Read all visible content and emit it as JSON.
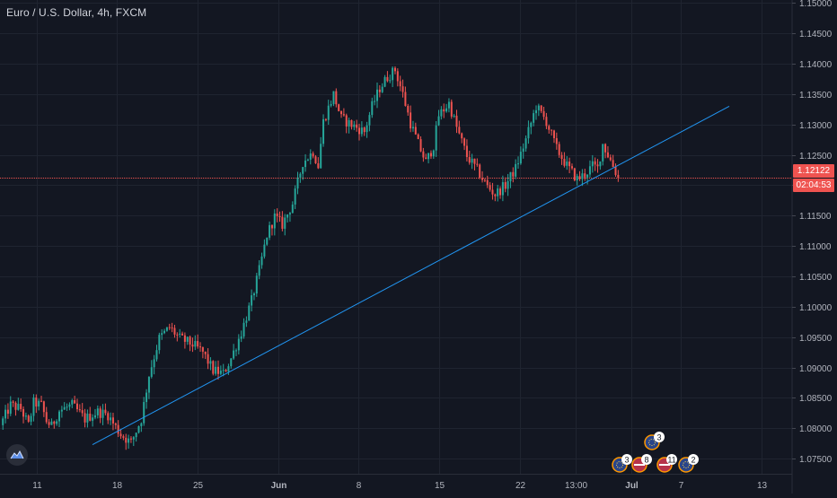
{
  "header": {
    "title": "Euro / U.S. Dollar, 4h, FXCM"
  },
  "price_line": {
    "price_label": "1.12122",
    "countdown_label": "02:04:53",
    "color": "#ef5350"
  },
  "logo": {
    "icon": "tradingview-cloud-icon"
  },
  "colors": {
    "background": "#131722",
    "up": "#26a69a",
    "down": "#ef5350",
    "trendline": "#2196f3",
    "grid": "#1f2430",
    "axis_text": "#b2b5be"
  },
  "events": [
    {
      "icon": "flag-eu-icon",
      "count": "3"
    },
    {
      "icon": "flag-us-icon",
      "count": "8"
    },
    {
      "icon": "flag-us-icon",
      "count": "11"
    },
    {
      "icon": "flag-eu-icon",
      "count": "2"
    },
    {
      "icon": "flag-eu-icon",
      "count": "3"
    }
  ],
  "chart_data": {
    "type": "candlestick",
    "symbol": "Euro / U.S. Dollar",
    "interval": "4h",
    "source": "FXCM",
    "x_ticks": [
      "11",
      "18",
      "25",
      "Jun",
      "8",
      "15",
      "22",
      "13:00",
      "Jul",
      "7",
      "13"
    ],
    "y_ticks": [
      "1.15000",
      "1.14500",
      "1.14000",
      "1.13500",
      "1.13000",
      "1.12500",
      "1.12000",
      "1.11500",
      "1.11000",
      "1.10500",
      "1.10000",
      "1.09500",
      "1.09000",
      "1.08500",
      "1.08000",
      "1.07500"
    ],
    "ylim": [
      1.0725,
      1.1505
    ],
    "last_price": 1.12122,
    "grid": true,
    "close_path": [
      [
        0,
        1.0805
      ],
      [
        4,
        1.0838
      ],
      [
        8,
        1.0832
      ],
      [
        11,
        1.0805
      ],
      [
        13,
        1.0842
      ],
      [
        16,
        1.0838
      ],
      [
        18,
        1.0812
      ],
      [
        20,
        1.0803
      ],
      [
        23,
        1.0829
      ],
      [
        28,
        1.0838
      ],
      [
        33,
        1.0815
      ],
      [
        38,
        1.0827
      ],
      [
        42,
        1.0822
      ],
      [
        44,
        1.0808
      ],
      [
        47,
        1.079
      ],
      [
        51,
        1.0776
      ],
      [
        55,
        1.0815
      ],
      [
        58,
        1.0888
      ],
      [
        62,
        1.0948
      ],
      [
        66,
        1.0966
      ],
      [
        70,
        1.0948
      ],
      [
        75,
        1.0938
      ],
      [
        79,
        1.0925
      ],
      [
        83,
        1.0895
      ],
      [
        87,
        1.089
      ],
      [
        90,
        1.0915
      ],
      [
        94,
        1.0958
      ],
      [
        98,
        1.101
      ],
      [
        101,
        1.106
      ],
      [
        104,
        1.1118
      ],
      [
        107,
        1.1148
      ],
      [
        110,
        1.1135
      ],
      [
        114,
        1.117
      ],
      [
        118,
        1.1238
      ],
      [
        122,
        1.1255
      ],
      [
        124,
        1.1232
      ],
      [
        126,
        1.1305
      ],
      [
        130,
        1.135
      ],
      [
        133,
        1.131
      ],
      [
        136,
        1.1302
      ],
      [
        139,
        1.1295
      ],
      [
        142,
        1.1288
      ],
      [
        145,
        1.133
      ],
      [
        148,
        1.136
      ],
      [
        151,
        1.1378
      ],
      [
        154,
        1.139
      ],
      [
        157,
        1.135
      ],
      [
        160,
        1.1302
      ],
      [
        163,
        1.1268
      ],
      [
        166,
        1.1238
      ],
      [
        169,
        1.1265
      ],
      [
        171,
        1.1315
      ],
      [
        175,
        1.1335
      ],
      [
        178,
        1.1295
      ],
      [
        182,
        1.1248
      ],
      [
        186,
        1.1225
      ],
      [
        190,
        1.1198
      ],
      [
        193,
        1.1185
      ],
      [
        197,
        1.12
      ],
      [
        201,
        1.1228
      ],
      [
        205,
        1.1275
      ],
      [
        209,
        1.133
      ],
      [
        213,
        1.1305
      ],
      [
        217,
        1.126
      ],
      [
        221,
        1.1232
      ],
      [
        225,
        1.121
      ],
      [
        228,
        1.1218
      ],
      [
        231,
        1.1232
      ],
      [
        233,
        1.1228
      ],
      [
        235,
        1.1268
      ],
      [
        237,
        1.125
      ],
      [
        239,
        1.1232
      ],
      [
        241,
        1.1212
      ]
    ],
    "trendline": {
      "start": {
        "x": "May 14",
        "y": 1.0773
      },
      "end": {
        "x": "Jul 10",
        "y": 1.133
      },
      "color": "#2196f3"
    }
  }
}
